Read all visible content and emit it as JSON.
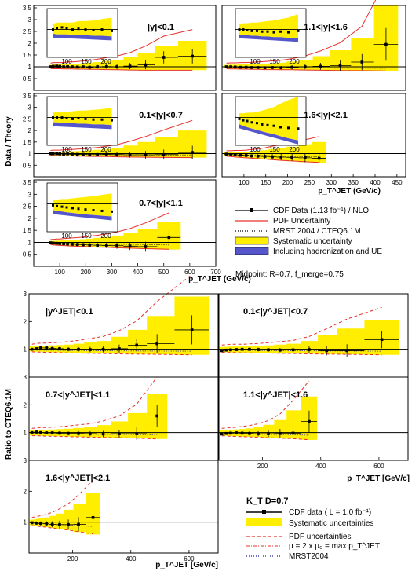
{
  "figures": {
    "top": {
      "ylabel": "Data / Theory",
      "xlabel": "p_T^JET (GeV/c)",
      "midpoint_label": "Midpoint:  R=0.7,  f_merge=0.75",
      "legend": [
        {
          "label": "CDF Data (1.13 fb⁻¹) / NLO",
          "color": "#000000"
        },
        {
          "label": "PDF Uncertainty",
          "color": "#e8302a"
        },
        {
          "label": "MRST 2004 / CTEQ6.1M",
          "color": "#000000"
        },
        {
          "label": "Systematic uncertainty",
          "color": "#ffee00"
        },
        {
          "label": "Including hadronization and UE",
          "color": "#5555cc"
        }
      ]
    },
    "bottom": {
      "ylabel": "Ratio to CTEQ6.1M",
      "xlabel": "p_T^JET [GeV/c]",
      "algo_label": "K_T  D=0.7",
      "legend": [
        {
          "label": "CDF data  ( L = 1.0 fb⁻¹)",
          "color": "#000000"
        },
        {
          "label": "Systematic uncertainties",
          "color": "#ffee00"
        },
        {
          "label": "PDF uncertainties",
          "color": "#e8302a"
        },
        {
          "label": "μ = 2 x μ₀ = max p_T^JET",
          "color": "#e8302a"
        },
        {
          "label": "MRST2004",
          "color": "#2222aa"
        }
      ]
    }
  },
  "chart_data": [
    {
      "type": "scatter",
      "title": "|y|<0.1",
      "xlim": [
        0,
        700
      ],
      "ylim": [
        0,
        3.6
      ],
      "yticks": [
        0.5,
        1,
        1.5,
        2,
        2.5,
        3,
        3.5
      ],
      "xticks": [
        100,
        200,
        300,
        400,
        500,
        600,
        700
      ],
      "x": [
        65,
        75,
        88,
        100,
        115,
        130,
        148,
        168,
        190,
        215,
        245,
        280,
        320,
        370,
        430,
        500,
        610
      ],
      "y": [
        1.0,
        1.02,
        1.03,
        1.02,
        1.0,
        1.01,
        1.0,
        0.99,
        1.0,
        0.98,
        1.0,
        1.01,
        1.0,
        1.03,
        1.08,
        1.4,
        1.45
      ],
      "sys_up": [
        1.08,
        1.1,
        1.1,
        1.1,
        1.1,
        1.12,
        1.12,
        1.13,
        1.15,
        1.17,
        1.2,
        1.25,
        1.3,
        1.4,
        1.6,
        1.9,
        2.1
      ],
      "sys_down": [
        0.94,
        0.93,
        0.93,
        0.93,
        0.92,
        0.92,
        0.92,
        0.91,
        0.91,
        0.9,
        0.9,
        0.89,
        0.88,
        0.87,
        0.86,
        0.86,
        0.86
      ]
    },
    {
      "type": "scatter",
      "title": "1.1<|y|<1.6",
      "xlim": [
        50,
        470
      ],
      "ylim": [
        0,
        3.6
      ],
      "xticks": [
        100,
        150,
        200,
        250,
        300,
        350,
        400,
        450
      ],
      "x": [
        60,
        70,
        80,
        92,
        105,
        118,
        132,
        148,
        165,
        185,
        210,
        240,
        275,
        320,
        370,
        425
      ],
      "y": [
        1.0,
        1.0,
        0.99,
        0.98,
        0.98,
        0.97,
        0.97,
        0.96,
        0.97,
        0.96,
        0.98,
        1.0,
        1.02,
        1.05,
        1.2,
        1.95
      ],
      "sys_up": [
        1.08,
        1.09,
        1.09,
        1.1,
        1.1,
        1.11,
        1.12,
        1.13,
        1.15,
        1.17,
        1.22,
        1.3,
        1.45,
        1.7,
        2.2,
        3.6
      ],
      "sys_down": [
        0.93,
        0.92,
        0.92,
        0.91,
        0.91,
        0.9,
        0.9,
        0.89,
        0.89,
        0.88,
        0.88,
        0.87,
        0.86,
        0.85,
        0.84,
        0.83
      ]
    },
    {
      "type": "scatter",
      "title": "0.1<|y|<0.7",
      "xlim": [
        0,
        700
      ],
      "ylim": [
        0,
        3.6
      ],
      "x": [
        65,
        75,
        88,
        100,
        115,
        130,
        148,
        168,
        190,
        215,
        245,
        280,
        320,
        370,
        430,
        500,
        610
      ],
      "y": [
        1.0,
        1.0,
        1.0,
        0.99,
        0.98,
        0.99,
        0.98,
        0.97,
        0.97,
        0.96,
        0.96,
        0.97,
        0.96,
        0.95,
        0.95,
        0.96,
        1.05
      ],
      "sys_up": [
        1.07,
        1.08,
        1.08,
        1.08,
        1.09,
        1.1,
        1.1,
        1.11,
        1.12,
        1.14,
        1.16,
        1.2,
        1.25,
        1.35,
        1.5,
        1.7,
        2.0
      ],
      "sys_down": [
        0.93,
        0.93,
        0.92,
        0.92,
        0.92,
        0.91,
        0.91,
        0.9,
        0.9,
        0.89,
        0.89,
        0.88,
        0.87,
        0.86,
        0.85,
        0.84,
        0.83
      ]
    },
    {
      "type": "scatter",
      "title": "1.6<|y|<2.1",
      "xlim": [
        50,
        470
      ],
      "ylim": [
        0,
        3.6
      ],
      "x": [
        60,
        70,
        80,
        92,
        105,
        118,
        132,
        148,
        165,
        185,
        210,
        240,
        272
      ],
      "y": [
        0.98,
        0.96,
        0.95,
        0.93,
        0.92,
        0.9,
        0.89,
        0.88,
        0.86,
        0.85,
        0.84,
        0.82,
        0.8
      ],
      "sys_up": [
        1.06,
        1.06,
        1.07,
        1.07,
        1.08,
        1.1,
        1.12,
        1.15,
        1.2,
        1.25,
        1.3,
        1.4,
        1.5
      ],
      "sys_down": [
        0.9,
        0.88,
        0.86,
        0.84,
        0.82,
        0.8,
        0.78,
        0.76,
        0.73,
        0.7,
        0.67,
        0.63,
        0.6
      ]
    },
    {
      "type": "scatter",
      "title": "0.7<|y|<1.1",
      "xlim": [
        0,
        700
      ],
      "ylim": [
        0,
        3.6
      ],
      "x": [
        65,
        75,
        88,
        100,
        115,
        130,
        148,
        168,
        190,
        215,
        245,
        280,
        320,
        370,
        430,
        520
      ],
      "y": [
        0.98,
        0.97,
        0.96,
        0.95,
        0.94,
        0.93,
        0.92,
        0.91,
        0.9,
        0.89,
        0.88,
        0.87,
        0.86,
        0.84,
        0.82,
        1.2
      ],
      "sys_up": [
        1.06,
        1.06,
        1.07,
        1.07,
        1.08,
        1.09,
        1.1,
        1.11,
        1.13,
        1.15,
        1.18,
        1.22,
        1.28,
        1.38,
        1.55,
        1.85
      ],
      "sys_down": [
        0.91,
        0.9,
        0.89,
        0.88,
        0.87,
        0.86,
        0.85,
        0.84,
        0.83,
        0.82,
        0.8,
        0.79,
        0.77,
        0.75,
        0.73,
        0.7
      ]
    },
    {
      "type": "scatter",
      "title": "|y^JET|<0.1",
      "xlim": [
        50,
        700
      ],
      "ylim": [
        0,
        3
      ],
      "yticks": [
        1,
        2,
        3
      ],
      "x": [
        60,
        75,
        90,
        110,
        130,
        155,
        185,
        220,
        260,
        305,
        360,
        420,
        490,
        610
      ],
      "y": [
        1.0,
        1.02,
        1.05,
        1.05,
        1.03,
        1.02,
        1.0,
        1.0,
        0.99,
        1.0,
        1.02,
        1.15,
        1.2,
        1.7
      ],
      "sys_up": [
        1.1,
        1.12,
        1.13,
        1.13,
        1.14,
        1.15,
        1.17,
        1.2,
        1.25,
        1.3,
        1.45,
        1.7,
        2.2,
        2.9
      ],
      "sys_down": [
        0.92,
        0.91,
        0.91,
        0.9,
        0.9,
        0.89,
        0.88,
        0.87,
        0.86,
        0.85,
        0.84,
        0.83,
        0.82,
        0.8
      ]
    },
    {
      "type": "scatter",
      "title": "0.1<|y^JET|<0.7",
      "xlim": [
        50,
        700
      ],
      "ylim": [
        0,
        3
      ],
      "x": [
        60,
        75,
        90,
        110,
        130,
        155,
        185,
        220,
        260,
        305,
        360,
        420,
        490,
        610
      ],
      "y": [
        0.95,
        0.97,
        0.98,
        0.99,
        1.0,
        1.0,
        0.99,
        0.98,
        0.97,
        0.98,
        0.99,
        0.95,
        0.95,
        1.35
      ],
      "sys_up": [
        1.08,
        1.09,
        1.1,
        1.1,
        1.1,
        1.11,
        1.12,
        1.14,
        1.17,
        1.2,
        1.3,
        1.5,
        1.75,
        2.05
      ],
      "sys_down": [
        0.9,
        0.9,
        0.89,
        0.89,
        0.88,
        0.88,
        0.87,
        0.87,
        0.86,
        0.85,
        0.84,
        0.83,
        0.82,
        0.8
      ]
    },
    {
      "type": "scatter",
      "title": "0.7<|y^JET|<1.1",
      "xlim": [
        50,
        700
      ],
      "ylim": [
        0,
        3
      ],
      "x": [
        60,
        75,
        90,
        110,
        130,
        155,
        185,
        220,
        260,
        305,
        360,
        420,
        490
      ],
      "y": [
        1.0,
        1.02,
        1.0,
        0.99,
        0.99,
        0.98,
        0.97,
        0.97,
        0.96,
        0.95,
        0.96,
        0.96,
        1.6
      ],
      "sys_up": [
        1.08,
        1.09,
        1.1,
        1.1,
        1.11,
        1.12,
        1.14,
        1.17,
        1.2,
        1.27,
        1.4,
        1.7,
        2.4
      ],
      "sys_down": [
        0.9,
        0.9,
        0.89,
        0.88,
        0.88,
        0.87,
        0.86,
        0.85,
        0.84,
        0.83,
        0.82,
        0.8,
        0.77
      ]
    },
    {
      "type": "scatter",
      "title": "1.1<|y^JET|<1.6",
      "xlim": [
        50,
        700
      ],
      "ylim": [
        0,
        3
      ],
      "xticks": [
        200,
        400,
        600
      ],
      "x": [
        60,
        75,
        90,
        110,
        130,
        155,
        185,
        220,
        260,
        305,
        360
      ],
      "y": [
        0.95,
        0.97,
        0.98,
        0.99,
        0.98,
        0.97,
        0.96,
        0.96,
        0.97,
        0.98,
        1.4
      ],
      "sys_up": [
        1.08,
        1.09,
        1.1,
        1.11,
        1.13,
        1.15,
        1.2,
        1.28,
        1.45,
        1.8,
        2.3
      ],
      "sys_down": [
        0.9,
        0.89,
        0.88,
        0.87,
        0.86,
        0.85,
        0.84,
        0.82,
        0.8,
        0.78,
        0.74
      ]
    },
    {
      "type": "scatter",
      "title": "1.6<|y^JET|<2.1",
      "xlim": [
        50,
        700
      ],
      "ylim": [
        0,
        3
      ],
      "xticks": [
        200,
        400,
        600
      ],
      "x": [
        60,
        75,
        90,
        110,
        130,
        155,
        185,
        220,
        270
      ],
      "y": [
        0.98,
        0.97,
        0.96,
        0.95,
        0.93,
        0.92,
        0.92,
        0.93,
        1.15
      ],
      "sys_up": [
        1.08,
        1.1,
        1.12,
        1.15,
        1.2,
        1.28,
        1.4,
        1.6,
        1.95
      ],
      "sys_down": [
        0.9,
        0.88,
        0.86,
        0.84,
        0.81,
        0.78,
        0.74,
        0.68,
        0.6
      ]
    }
  ]
}
